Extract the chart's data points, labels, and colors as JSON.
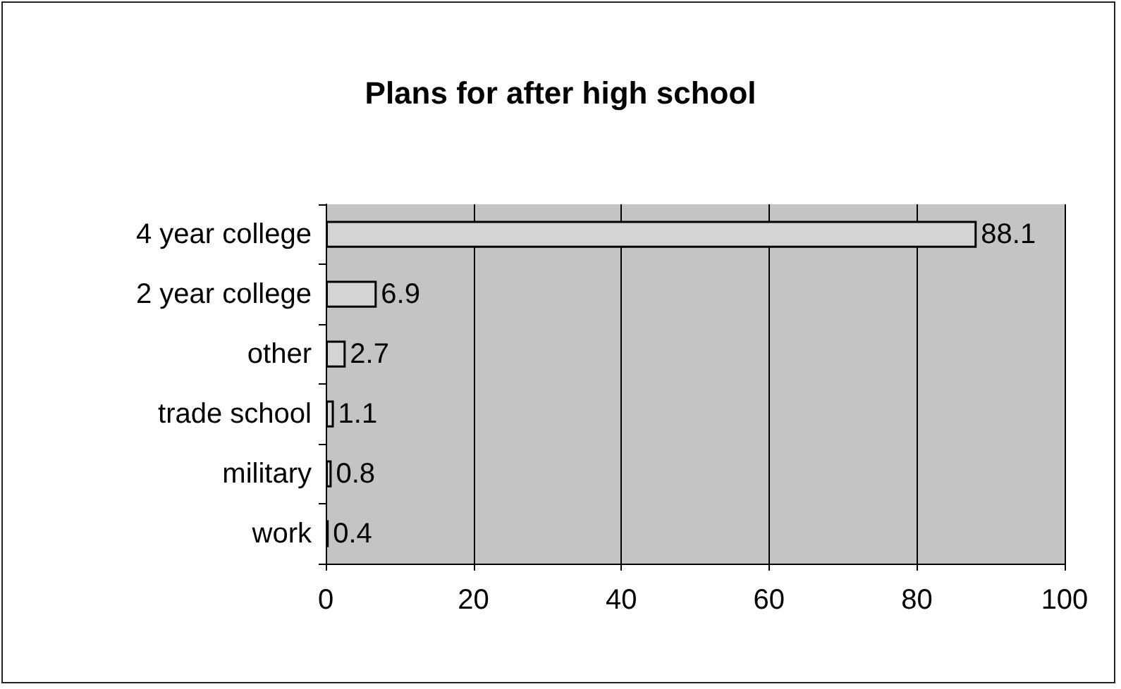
{
  "chart_data": {
    "type": "bar",
    "title": "Plans for after high school",
    "orientation": "horizontal",
    "categories": [
      "4 year college",
      "2 year college",
      "other",
      "trade school",
      "military",
      "work"
    ],
    "values": [
      88.1,
      6.9,
      2.7,
      1.1,
      0.8,
      0.4
    ],
    "color": "#d4d4d4",
    "xlim": [
      0,
      100
    ],
    "xticks": [
      0,
      20,
      40,
      60,
      80,
      100
    ],
    "grid": "x",
    "data_labels": true
  }
}
